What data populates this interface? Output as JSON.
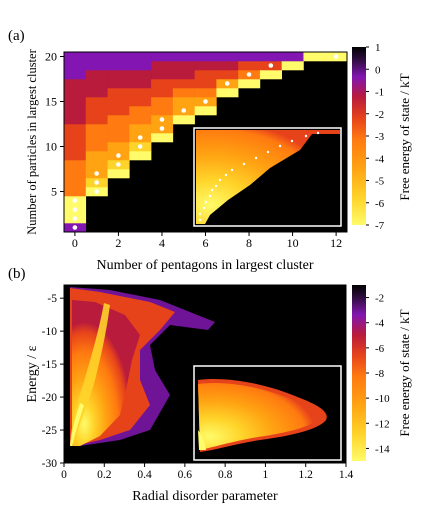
{
  "colors": {
    "background_plot": "#000000",
    "inset_frame": "#ffffff",
    "scale_stops": [
      "#fffb6a",
      "#ffd42a",
      "#ffa312",
      "#ff7a10",
      "#e7431b",
      "#b81b3c",
      "#8316b2",
      "#2e0d3d",
      "#000000"
    ]
  },
  "chart_data": [
    {
      "type": "heatmap",
      "panel_label": "(a)",
      "title": "",
      "xlabel": "Number of pentagons in largest cluster",
      "ylabel": "Number of particles in largest cluster",
      "xlim": [
        -0.5,
        12.5
      ],
      "ylim": [
        0.5,
        20.5
      ],
      "x_ticks": [
        0,
        2,
        4,
        6,
        8,
        10,
        12
      ],
      "y_ticks": [
        5,
        10,
        15,
        20
      ],
      "grid": false,
      "colorbar": {
        "label": "Free energy of state / kT",
        "min": -7,
        "max": 1,
        "ticks": [
          1,
          0,
          -1,
          -2,
          -3,
          -4,
          -5,
          -6,
          -7
        ]
      },
      "cells_per_column": [
        {
          "pentagons": 0,
          "particle_range": [
            1,
            20
          ],
          "dots_at": [
            1,
            2,
            3,
            4
          ]
        },
        {
          "pentagons": 1,
          "particle_range": [
            5,
            20
          ],
          "dots_at": [
            5,
            6,
            7
          ]
        },
        {
          "pentagons": 2,
          "particle_range": [
            7,
            20
          ],
          "dots_at": [
            8,
            9
          ]
        },
        {
          "pentagons": 3,
          "particle_range": [
            9,
            20
          ],
          "dots_at": [
            10,
            11
          ]
        },
        {
          "pentagons": 4,
          "particle_range": [
            11,
            20
          ],
          "dots_at": [
            12,
            13
          ]
        },
        {
          "pentagons": 5,
          "particle_range": [
            13,
            20
          ],
          "dots_at": [
            14
          ]
        },
        {
          "pentagons": 6,
          "particle_range": [
            14,
            20
          ],
          "dots_at": [
            15
          ]
        },
        {
          "pentagons": 7,
          "particle_range": [
            16,
            20
          ],
          "dots_at": [
            17
          ]
        },
        {
          "pentagons": 8,
          "particle_range": [
            17,
            20
          ],
          "dots_at": [
            18
          ]
        },
        {
          "pentagons": 9,
          "particle_range": [
            18,
            20
          ],
          "dots_at": [
            19
          ]
        },
        {
          "pentagons": 10,
          "particle_range": [
            19,
            20
          ],
          "dots_at": []
        },
        {
          "pentagons": 11,
          "particle_range": [
            20,
            20
          ],
          "dots_at": []
        },
        {
          "pentagons": 12,
          "particle_range": [
            20,
            20
          ],
          "dots_at": [
            20
          ]
        }
      ],
      "inset": {
        "description_free": true
      }
    },
    {
      "type": "heatmap",
      "panel_label": "(b)",
      "title": "",
      "xlabel": "Radial disorder parameter",
      "ylabel": "Energy / ε",
      "xlim": [
        0,
        1.4
      ],
      "ylim": [
        -30,
        -3
      ],
      "x_ticks": [
        0,
        0.2,
        0.4,
        0.6,
        0.8,
        1,
        1.2,
        1.4
      ],
      "x_tick_labels": [
        "0",
        "0.2",
        "0.4",
        "0.6",
        "0.8",
        "1",
        "1.2",
        "1.4"
      ],
      "y_ticks": [
        -5,
        -10,
        -15,
        -20,
        -25,
        -30
      ],
      "grid": false,
      "colorbar": {
        "label": "Free energy of state / kT",
        "min": -15,
        "max": -1,
        "ticks": [
          -2,
          -4,
          -6,
          -8,
          -10,
          -12,
          -14
        ]
      },
      "ridge": {
        "description": "dense band from bottom-left rising toward top-left",
        "points": [
          [
            0.03,
            -27
          ],
          [
            0.06,
            -24
          ],
          [
            0.1,
            -20
          ],
          [
            0.14,
            -16
          ],
          [
            0.18,
            -12
          ],
          [
            0.22,
            -8
          ],
          [
            0.26,
            -4
          ]
        ]
      },
      "fan_edge": [
        [
          0.02,
          -27
        ],
        [
          0.1,
          -26
        ],
        [
          0.3,
          -22
        ],
        [
          0.45,
          -19
        ],
        [
          0.52,
          -15
        ],
        [
          0.55,
          -11
        ],
        [
          0.5,
          -8
        ],
        [
          0.45,
          -5
        ]
      ]
    }
  ]
}
